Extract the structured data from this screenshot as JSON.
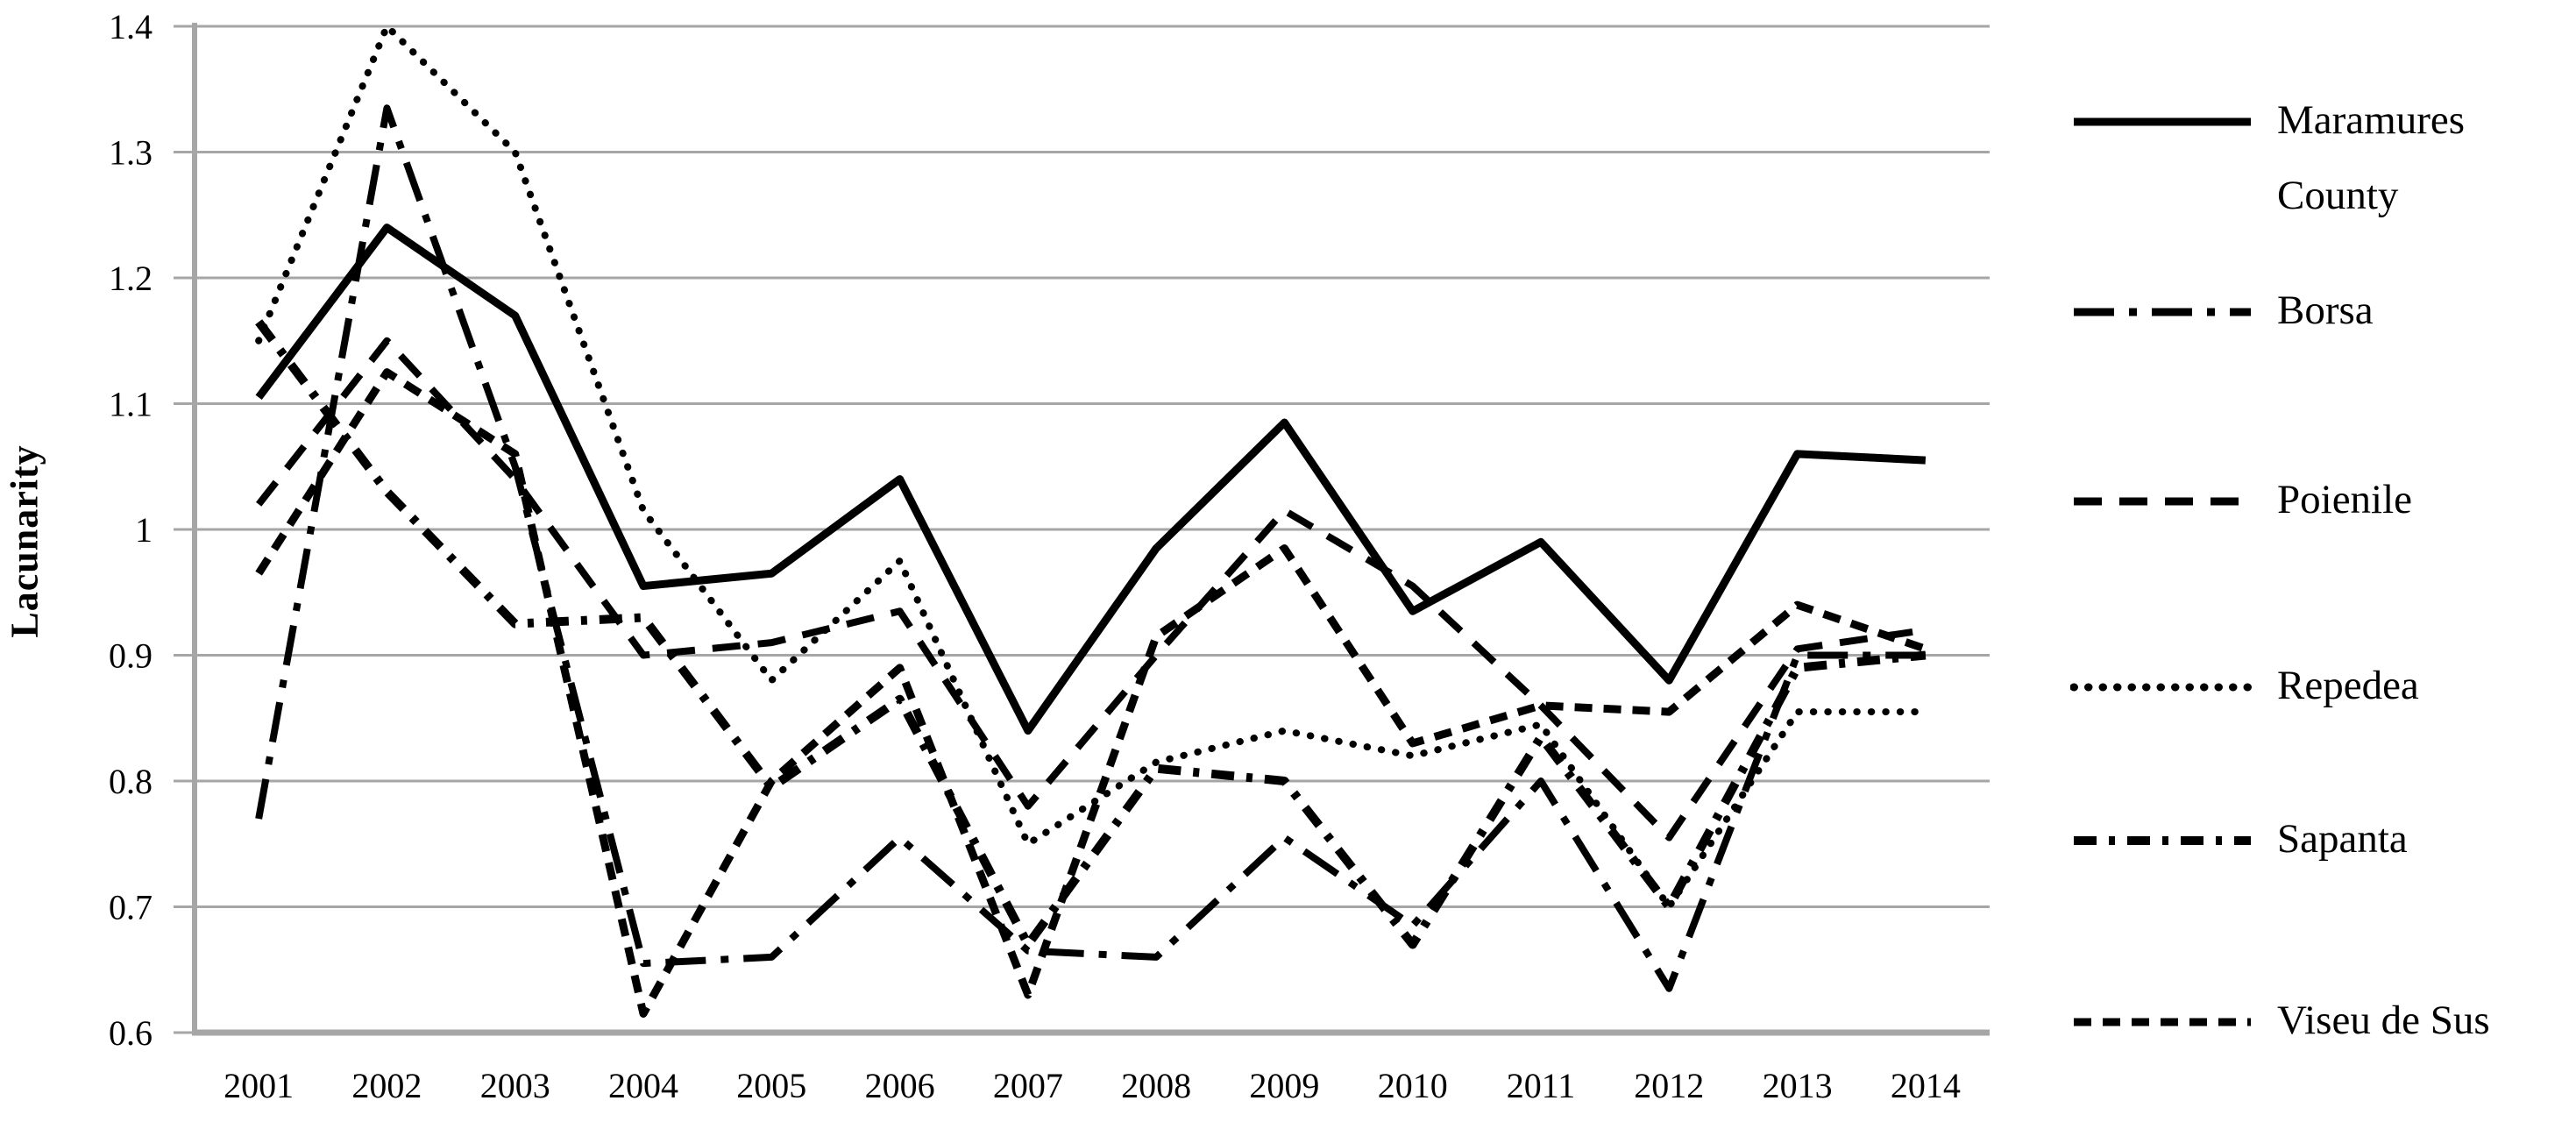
{
  "chart_data": {
    "type": "line",
    "title": "",
    "xlabel": "",
    "ylabel": "Lacunarity",
    "ylim": [
      0.6,
      1.4
    ],
    "yticks": [
      0.6,
      0.7,
      0.8,
      0.9,
      1.0,
      1.1,
      1.2,
      1.3,
      1.4
    ],
    "ytick_labels": [
      "0.6",
      "0.7",
      "0.8",
      "0.9",
      "1",
      "1.1",
      "1.2",
      "1.3",
      "1.4"
    ],
    "grid": "horizontal",
    "grid_color": "#a6a6a6",
    "axis_color": "#a6a6a6",
    "line_color": "#000000",
    "background_color": "#ffffff",
    "legend_position": "right",
    "years": [
      "2001",
      "2002",
      "2003",
      "2004",
      "2005",
      "2006",
      "2007",
      "2008",
      "2009",
      "2010",
      "2011",
      "2012",
      "2013",
      "2014"
    ],
    "series": [
      {
        "name": "Maramures County",
        "style": "solid",
        "dash": "",
        "width": 9,
        "cap": "butt",
        "values": [
          1.105,
          1.24,
          1.17,
          0.955,
          0.965,
          1.04,
          0.84,
          0.985,
          1.085,
          0.935,
          0.99,
          0.88,
          1.06,
          1.055
        ]
      },
      {
        "name": "Borsa",
        "style": "long-dash-dot",
        "dash": "46 17 9 17",
        "width": 8,
        "cap": "butt",
        "values": [
          0.77,
          1.335,
          1.05,
          0.655,
          0.66,
          0.755,
          0.665,
          0.66,
          0.755,
          0.685,
          0.8,
          0.635,
          0.9,
          0.9
        ]
      },
      {
        "name": "Poienile",
        "style": "dashed",
        "dash": "32 20",
        "width": 8,
        "cap": "butt",
        "values": [
          1.02,
          1.15,
          1.04,
          0.9,
          0.91,
          0.935,
          0.78,
          0.9,
          1.015,
          0.955,
          0.86,
          0.755,
          0.905,
          0.92
        ]
      },
      {
        "name": "Repedea",
        "style": "dotted",
        "dash": "0.5 16",
        "width": 8,
        "cap": "round",
        "values": [
          1.15,
          1.4,
          1.3,
          1.015,
          0.88,
          0.975,
          0.75,
          0.815,
          0.84,
          0.82,
          0.845,
          0.7,
          0.855,
          0.855
        ]
      },
      {
        "name": "Sapanta",
        "style": "bold-dash-dot",
        "dash": "26 14 7 14",
        "width": 10,
        "cap": "butt",
        "values": [
          1.165,
          1.03,
          0.925,
          0.93,
          0.795,
          0.865,
          0.67,
          0.81,
          0.8,
          0.67,
          0.835,
          0.7,
          0.89,
          0.9
        ]
      },
      {
        "name": "Viseu de Sus",
        "style": "short-dash",
        "dash": "20 13",
        "width": 9,
        "cap": "butt",
        "values": [
          0.965,
          1.125,
          1.06,
          0.615,
          0.8,
          0.89,
          0.63,
          0.915,
          0.985,
          0.83,
          0.86,
          0.855,
          0.94,
          0.905
        ]
      }
    ]
  }
}
